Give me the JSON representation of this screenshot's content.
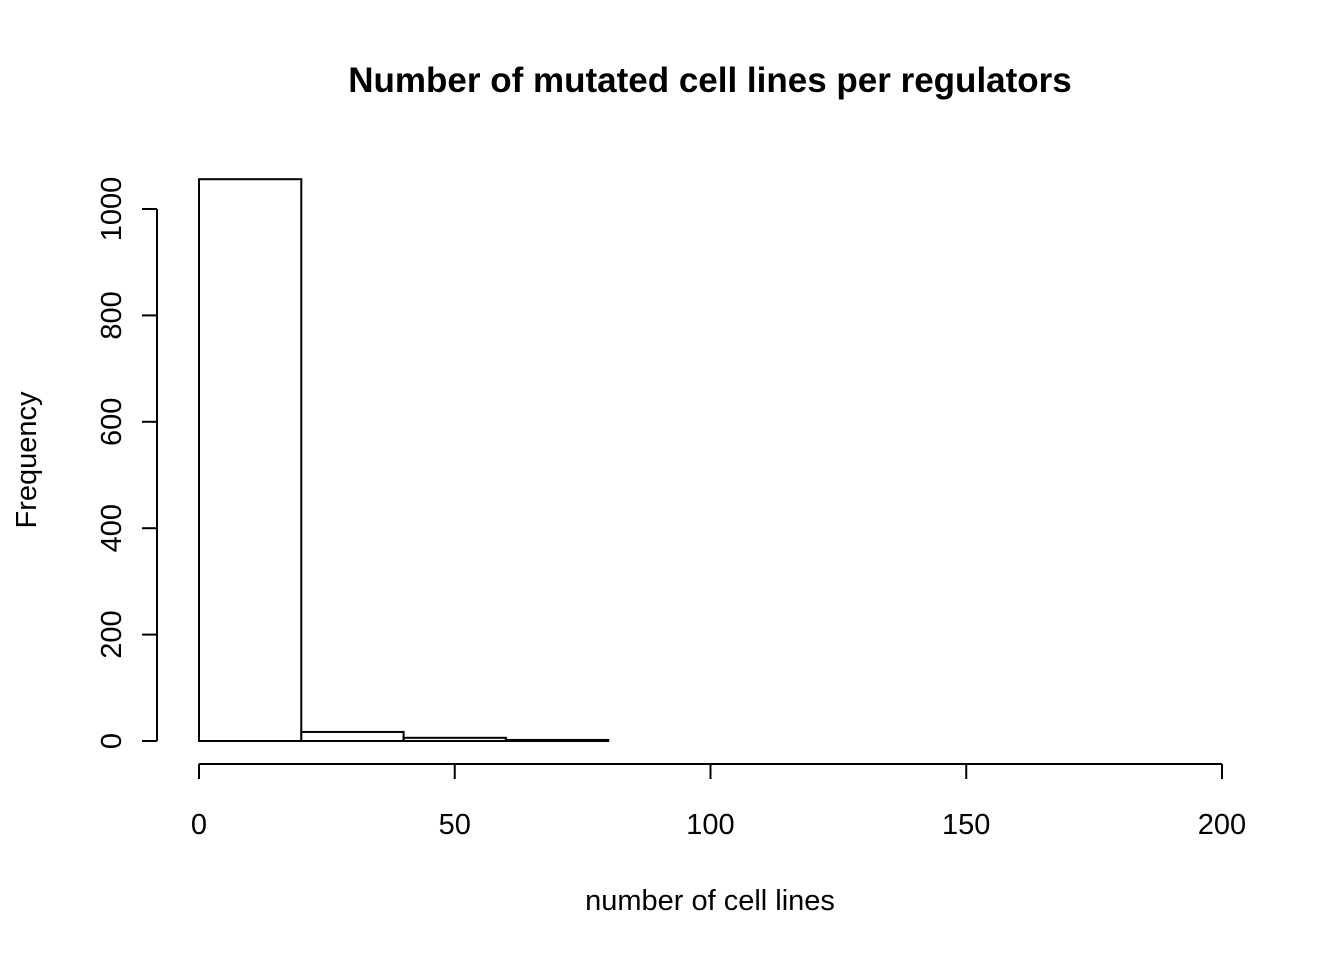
{
  "chart_data": {
    "type": "bar",
    "title": "Number of mutated cell lines per regulators",
    "xlabel": "number of cell lines",
    "ylabel": "Frequency",
    "bin_edges": [
      0,
      20,
      40,
      60,
      80,
      100,
      120,
      140,
      160,
      180,
      200
    ],
    "values": [
      1056,
      17,
      6,
      2,
      0,
      0,
      0,
      0,
      0,
      0
    ],
    "xlim": [
      0,
      200
    ],
    "ylim": [
      0,
      1056
    ],
    "x_ticks": [
      "0",
      "50",
      "100",
      "150",
      "200"
    ],
    "y_ticks": [
      "0",
      "200",
      "400",
      "600",
      "800",
      "1000"
    ],
    "grid": false,
    "bar_fill": "#ffffff",
    "bar_stroke": "#000000"
  }
}
